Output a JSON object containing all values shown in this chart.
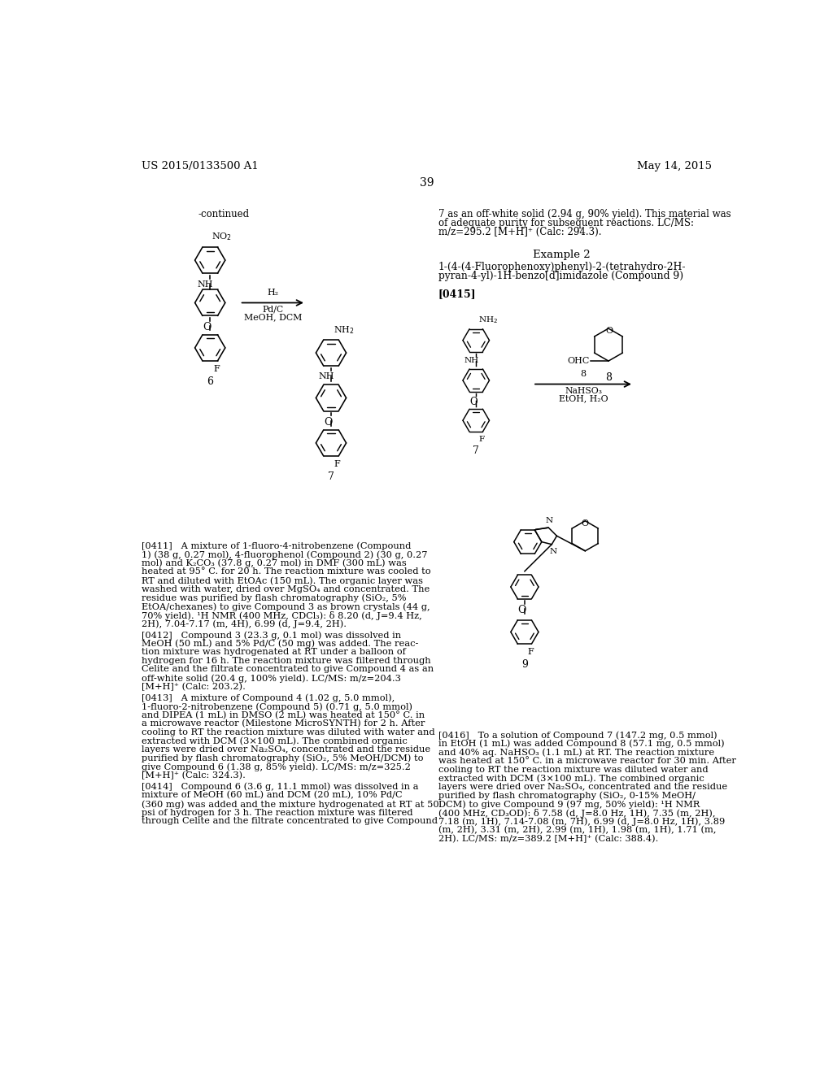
{
  "background_color": "#ffffff",
  "header_left": "US 2015/0133500 A1",
  "header_right": "May 14, 2015",
  "page_number": "39",
  "continued_label": "-continued",
  "right_text_line1": "7 as an off-white solid (2.94 g, 90% yield). This material was",
  "right_text_line2": "of adequate purity for subsequent reactions. LC/MS:",
  "right_text_line3": "m/z=295.2 [M+H]⁺ (Calc: 294.3).",
  "example2_title": "Example 2",
  "example2_name_line1": "1-(4-(4-Fluorophenoxy)phenyl)-2-(tetrahydro-2H-",
  "example2_name_line2": "pyran-4-yl)-1H-benzo[d]imidazole (Compound 9)",
  "para_0415_label": "[0415]",
  "compound6_label": "6",
  "compound7_left_label": "7",
  "compound7_right_label": "7",
  "compound8_label": "8",
  "compound9_label": "9",
  "arrow1_above": "H₂",
  "arrow1_below1": "Pd/C",
  "arrow1_below2": "MeOH, DCM",
  "arrow2_above": "8",
  "arrow2_below1": "NaHSO₃",
  "arrow2_below2": "EtOH, H₂O",
  "para_0411_lines": [
    "[0411]   A mixture of 1-fluoro-4-nitrobenzene (Compound",
    "1) (38 g, 0.27 mol), 4-fluorophenol (Compound 2) (30 g, 0.27",
    "mol) and K₂CO₃ (37.8 g, 0.27 mol) in DMF (300 mL) was",
    "heated at 95° C. for 20 h. The reaction mixture was cooled to",
    "RT and diluted with EtOAc (150 mL). The organic layer was",
    "washed with water, dried over MgSO₄ and concentrated. The",
    "residue was purified by flash chromatography (SiO₂, 5%",
    "EtOA/chexanes) to give Compound 3 as brown crystals (44 g,",
    "70% yield). ¹H NMR (400 MHz, CDCl₃): δ 8.20 (d, J=9.4 Hz,",
    "2H), 7.04-7.17 (m, 4H), 6.99 (d, J=9.4, 2H)."
  ],
  "para_0412_lines": [
    "[0412]   Compound 3 (23.3 g, 0.1 mol) was dissolved in",
    "MeOH (50 mL) and 5% Pd/C (50 mg) was added. The reac-",
    "tion mixture was hydrogenated at RT under a balloon of",
    "hydrogen for 16 h. The reaction mixture was filtered through",
    "Celite and the filtrate concentrated to give Compound 4 as an",
    "off-white solid (20.4 g, 100% yield). LC/MS: m/z=204.3",
    "[M+H]⁺ (Calc: 203.2)."
  ],
  "para_0413_lines": [
    "[0413]   A mixture of Compound 4 (1.02 g, 5.0 mmol),",
    "1-fluoro-2-nitrobenzene (Compound 5) (0.71 g, 5.0 mmol)",
    "and DIPEA (1 mL) in DMSO (2 mL) was heated at 150° C. in",
    "a microwave reactor (Milestone MicroSYNTH) for 2 h. After",
    "cooling to RT the reaction mixture was diluted with water and",
    "extracted with DCM (3×100 mL). The combined organic",
    "layers were dried over Na₂SO₄, concentrated and the residue",
    "purified by flash chromatography (SiO₂, 5% MeOH/DCM) to",
    "give Compound 6 (1.38 g, 85% yield). LC/MS: m/z=325.2",
    "[M+H]⁺ (Calc: 324.3)."
  ],
  "para_0414_lines": [
    "[0414]   Compound 6 (3.6 g, 11.1 mmol) was dissolved in a",
    "mixture of MeOH (60 mL) and DCM (20 mL), 10% Pd/C",
    "(360 mg) was added and the mixture hydrogenated at RT at 50",
    "psi of hydrogen for 3 h. The reaction mixture was filtered",
    "through Celite and the filtrate concentrated to give Compound"
  ],
  "para_0416_lines": [
    "[0416]   To a solution of Compound 7 (147.2 mg, 0.5 mmol)",
    "in EtOH (1 mL) was added Compound 8 (57.1 mg, 0.5 mmol)",
    "and 40% aq. NaHSO₃ (1.1 mL) at RT. The reaction mixture",
    "was heated at 150° C. in a microwave reactor for 30 min. After",
    "cooling to RT the reaction mixture was diluted water and",
    "extracted with DCM (3×100 mL). The combined organic",
    "layers were dried over Na₂SO₄, concentrated and the residue",
    "purified by flash chromatography (SiO₂, 0-15% MeOH/",
    "DCM) to give Compound 9 (97 mg, 50% yield): ¹H NMR",
    "(400 MHz, CD₃OD): δ 7.58 (d, J=8.0 Hz, 1H), 7.35 (m, 2H),",
    "7.18 (m, 1H), 7.14-7.08 (m, 7H), 6.99 (d, J=8.0 Hz, 1H), 3.89",
    "(m, 2H), 3.31 (m, 2H), 2.99 (m, 1H), 1.98 (m, 1H), 1.71 (m,",
    "2H). LC/MS: m/z=389.2 [M+H]⁺ (Calc: 388.4)."
  ]
}
